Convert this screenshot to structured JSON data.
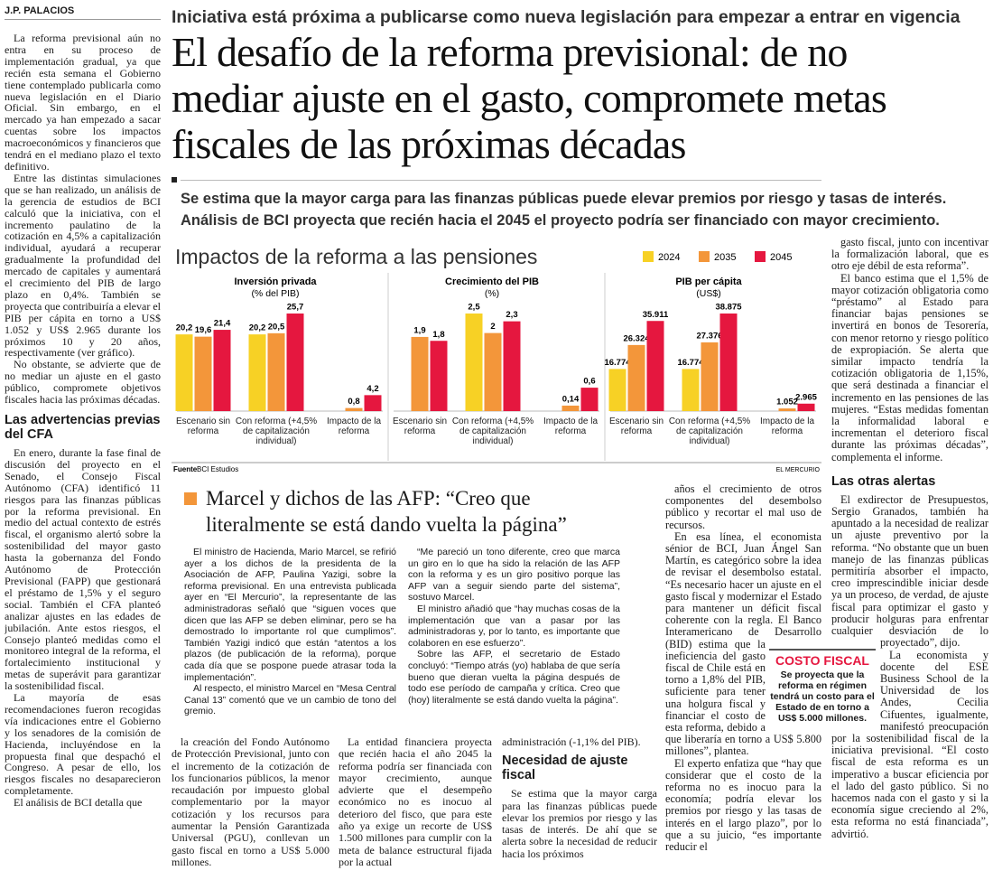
{
  "byline": "J.P. PALACIOS",
  "kicker": "Iniciativa está próxima a publicarse como nueva legislación para empezar a entrar en vigencia",
  "headline": "El desafío de la reforma previsional: de no mediar ajuste en el gasto, compromete metas fiscales de las próximas décadas",
  "deck": [
    "Se estima que la mayor carga para las finanzas públicas puede elevar premios por riesgo y tasas de interés.",
    "Análisis de BCI proyecta que recién hacia el 2045 el proyecto podría ser financiado con mayor crecimiento."
  ],
  "left_column": {
    "paragraphs": [
      "La reforma previsional aún no entra en su proceso de implementación gradual, ya que recién esta semana el Gobierno tiene contemplado publicarla como nueva legislación en el Diario Oficial. Sin embargo, en el mercado ya han empezado a sacar cuentas sobre los impactos macroeconómicos y financieros que tendrá en el mediano plazo el texto definitivo.",
      "Entre las distintas simulaciones que se han realizado, un análisis de la gerencia de estudios de BCI calculó que la iniciativa, con el incremento paulatino de la cotización en 4,5% a capitalización individual, ayudará a recuperar gradualmente la profundidad del mercado de capitales y aumentará el crecimiento del PIB de largo plazo en 0,4%. También se proyecta que contribuiría a elevar el PIB per cápita en torno a US$ 1.052 y US$ 2.965 durante los próximos 10 y 20 años, respectivamente (ver gráfico).",
      "No obstante, se advierte que de no mediar un ajuste en el gasto público, compromete objetivos fiscales hacia las próximas décadas."
    ],
    "subhead": "Las advertencias previas del CFA",
    "paragraphs_2": [
      "En enero, durante la fase final de discusión del proyecto en el Senado, el Consejo Fiscal Autónomo (CFA) identificó 11 riesgos para las finanzas públicas por la reforma previsional. En medio del actual contexto de estrés fiscal, el organismo alertó sobre la sostenibilidad del mayor gasto hasta la gobernanza del Fondo Autónomo de Protección Previsional (FAPP) que gestionará el préstamo de 1,5% y el seguro social. También el CFA planteó analizar ajustes en las edades de jubilación. Ante estos riesgos, el Consejo planteó medidas como el monitoreo integral de la reforma, el fortalecimiento institucional y metas de superávit para garantizar la sostenibilidad fiscal.",
      "La mayoría de esas recomendaciones fueron recogidas vía indicaciones entre el Gobierno y los senadores de la comisión de Hacienda, incluyéndose en la propuesta final que despachó el Congreso. A pesar de ello, los riesgos fiscales no desaparecieron completamente.",
      "El análisis de BCI detalla que"
    ]
  },
  "chart_meta": {
    "title": "Impactos de la reforma a las pensiones",
    "source_label": "Fuente",
    "source": "BCI Estudios",
    "credit": "EL MERCURIO"
  },
  "chart_data": [
    {
      "type": "bar",
      "title": "Inversión privada",
      "subtitle": "(% del PIB)",
      "categories": [
        "Escenario sin reforma",
        "Con reforma (+4,5% de capitalización individual)",
        "Impacto de la reforma"
      ],
      "series": [
        {
          "name": "2024",
          "color": "#f7d125",
          "values": [
            20.2,
            20.2,
            null
          ],
          "value_labels": [
            "20,2",
            "20,2",
            null
          ]
        },
        {
          "name": "2035",
          "color": "#f3963a",
          "values": [
            19.6,
            20.5,
            0.8
          ],
          "value_labels": [
            "19,6",
            "20,5",
            "0,8"
          ]
        },
        {
          "name": "2045",
          "color": "#e5173f",
          "values": [
            21.4,
            25.7,
            4.2
          ],
          "value_labels": [
            "21,4",
            "25,7",
            "4,2"
          ]
        }
      ]
    },
    {
      "type": "bar",
      "title": "Crecimiento del PIB",
      "subtitle": "(%)",
      "categories": [
        "Escenario sin reforma",
        "Con reforma (+4,5% de capitalización individual)",
        "Impacto de la reforma"
      ],
      "series": [
        {
          "name": "2024",
          "color": "#f7d125",
          "values": [
            null,
            2.5,
            null
          ],
          "value_labels": [
            null,
            "2,5",
            null
          ]
        },
        {
          "name": "2035",
          "color": "#f3963a",
          "values": [
            1.9,
            2,
            0.14
          ],
          "value_labels": [
            "1,9",
            "2",
            "0,14"
          ]
        },
        {
          "name": "2045",
          "color": "#e5173f",
          "values": [
            1.8,
            2.3,
            0.6
          ],
          "value_labels": [
            "1,8",
            "2,3",
            "0,6"
          ]
        }
      ]
    },
    {
      "type": "bar",
      "title": "PIB per cápita",
      "subtitle": "(US$)",
      "categories": [
        "Escenario sin reforma",
        "Con reforma (+4,5% de capitalización individual)",
        "Impacto de la reforma"
      ],
      "series": [
        {
          "name": "2024",
          "color": "#f7d125",
          "values": [
            16774,
            16774,
            null
          ],
          "value_labels": [
            "16.774",
            "16.774",
            null
          ]
        },
        {
          "name": "2035",
          "color": "#f3963a",
          "values": [
            26324,
            27376,
            1052
          ],
          "value_labels": [
            "26.324",
            "27.376",
            "1.052"
          ]
        },
        {
          "name": "2045",
          "color": "#e5173f",
          "values": [
            35911,
            38875,
            2965
          ],
          "value_labels": [
            "35.911",
            "38.875",
            "2.965"
          ]
        }
      ]
    }
  ],
  "marcel_box": {
    "heading": "Marcel y dichos de las AFP: “Creo que literalmente se está dando vuelta la página”",
    "column_1": [
      "El ministro de Hacienda, Mario Marcel, se refirió ayer a los dichos de la presidenta de la Asociación de AFP, Paulina Yazigi, sobre la reforma previsional. En una entrevista publicada ayer en “El Mercurio”, la representante de las administradoras señaló que “siguen voces que dicen que las AFP se deben eliminar, pero se ha demostrado lo importante rol que cumplimos”. También Yazigi indicó que están “atentos a los plazos (de publicación de la reforma), porque cada día que se pospone puede atrasar toda la implementación”.",
      "Al respecto, el ministro Marcel en “Mesa Central Canal 13” comentó que ve un cambio de tono del gremio."
    ],
    "column_2": [
      "“Me pareció un tono diferente, creo que marca un giro en lo que ha sido la relación de las AFP con la reforma y es un giro positivo porque las AFP van a seguir siendo parte del sistema”, sostuvo Marcel.",
      "El ministro añadió que “hay muchas cosas de la implementación que van a pasar por las administradoras y, por lo tanto, es importante que colaboren en ese esfuerzo”.",
      "Sobre las AFP, el secretario de Estado concluyó: “Tiempo atrás (yo) hablaba de que sería bueno que dieran vuelta la página después de todo ese período de campaña y crítica. Creo que (hoy) literalmente se está dando vuelta la página”."
    ]
  },
  "bottom_columns": {
    "column_1": [
      "la creación del Fondo Autónomo de Protección Previsional, junto con el incremento de la cotización de los funcionarios públicos, la menor recaudación por impuesto global complementario por la mayor cotización y los recursos para aumentar la Pensión Garantizada Universal (PGU), conllevan un gasto fiscal en torno a US$ 5.000 millones."
    ],
    "column_2": [
      "La entidad financiera proyecta que recién hacia el año 2045 la reforma podría ser financiada con mayor crecimiento, aunque advierte que el desempeño económico no es inocuo al deterioro del fisco, que para este año ya exige un recorte de US$ 1.500 millones para cumplir con la meta de balance estructural fijada por la actual"
    ],
    "column_3_lead": "administración (-1,1% del PIB).",
    "column_3_subhead": "Necesidad de ajuste fiscal",
    "column_3": [
      "Se estima que la mayor carga para las finanzas públicas puede elevar los premios por riesgo y las tasas de interés. De ahí que se alerta sobre la necesidad de reducir hacia los próximos"
    ]
  },
  "column_4": [
    "años el crecimiento de otros componentes del desembolso público y recortar el mal uso de recursos.",
    "En esa línea, el economista sénior de BCI, Juan Ángel San Martín, es categórico sobre la idea de revisar el desembolso estatal. “Es necesario hacer un ajuste en el gasto fiscal y modernizar el Estado para mantener un déficit fiscal coherente con la regla. El Banco Interamericano de Desarrollo (BID) estima que la ineficiencia del gasto fiscal de Chile está en torno a 1,8% del PIB, suficiente para tener una holgura fiscal y financiar el costo de esta reforma, debido a que liberaría en torno a US$ 5.800 millones”, plantea.",
    "El experto enfatiza que “hay que considerar que el costo de la reforma no es inocuo para la economía; podría elevar los premios por riesgo y las tasas de interés en el largo plazo”, por lo que a su juicio, “es importante reducir el"
  ],
  "fact_box": {
    "label": "COSTO FISCAL",
    "text": "Se proyecta que la reforma en régimen tendrá un costo para el Estado de en torno a US$ 5.000 millones."
  },
  "right_column": {
    "paragraphs": [
      "gasto fiscal, junto con incentivar la formalización laboral, que es otro eje débil de esta reforma”.",
      "El banco estima que el 1,5% de mayor cotización obligatoria como “préstamo” al Estado para financiar bajas pensiones se invertirá en bonos de Tesorería, con menor retorno y riesgo político de expropiación. Se alerta que similar impacto tendría la cotización obligatoria de 1,15%, que será destinada a financiar el incremento en las pensiones de las mujeres. “Estas medidas fomentan la informalidad laboral e incrementan el deterioro fiscal durante las próximas décadas”, complementa el informe."
    ],
    "subhead": "Las otras alertas",
    "paragraphs_2": [
      "El exdirector de Presupuestos, Sergio Granados, también ha apuntado a la necesidad de realizar un ajuste preventivo por la reforma. “No obstante que un buen manejo de las finanzas públicas permitiría absorber el impacto, creo imprescindible iniciar desde ya un proceso, de verdad, de ajuste fiscal para optimizar el gasto y producir holguras para enfrentar cualquier desviación de lo proyectado”, dijo.",
      "La economista y docente del ESE Business School de la Universidad de los Andes, Cecilia Cifuentes, igualmente, manifestó preocupación por la sostenibilidad fiscal de la iniciativa previsional. “El costo fiscal de esta reforma es un imperativo a buscar eficiencia por el lado del gasto público. Si no hacemos nada con el gasto y si la economía sigue creciendo al 2%, esta reforma no está financiada”, advirtió."
    ]
  }
}
